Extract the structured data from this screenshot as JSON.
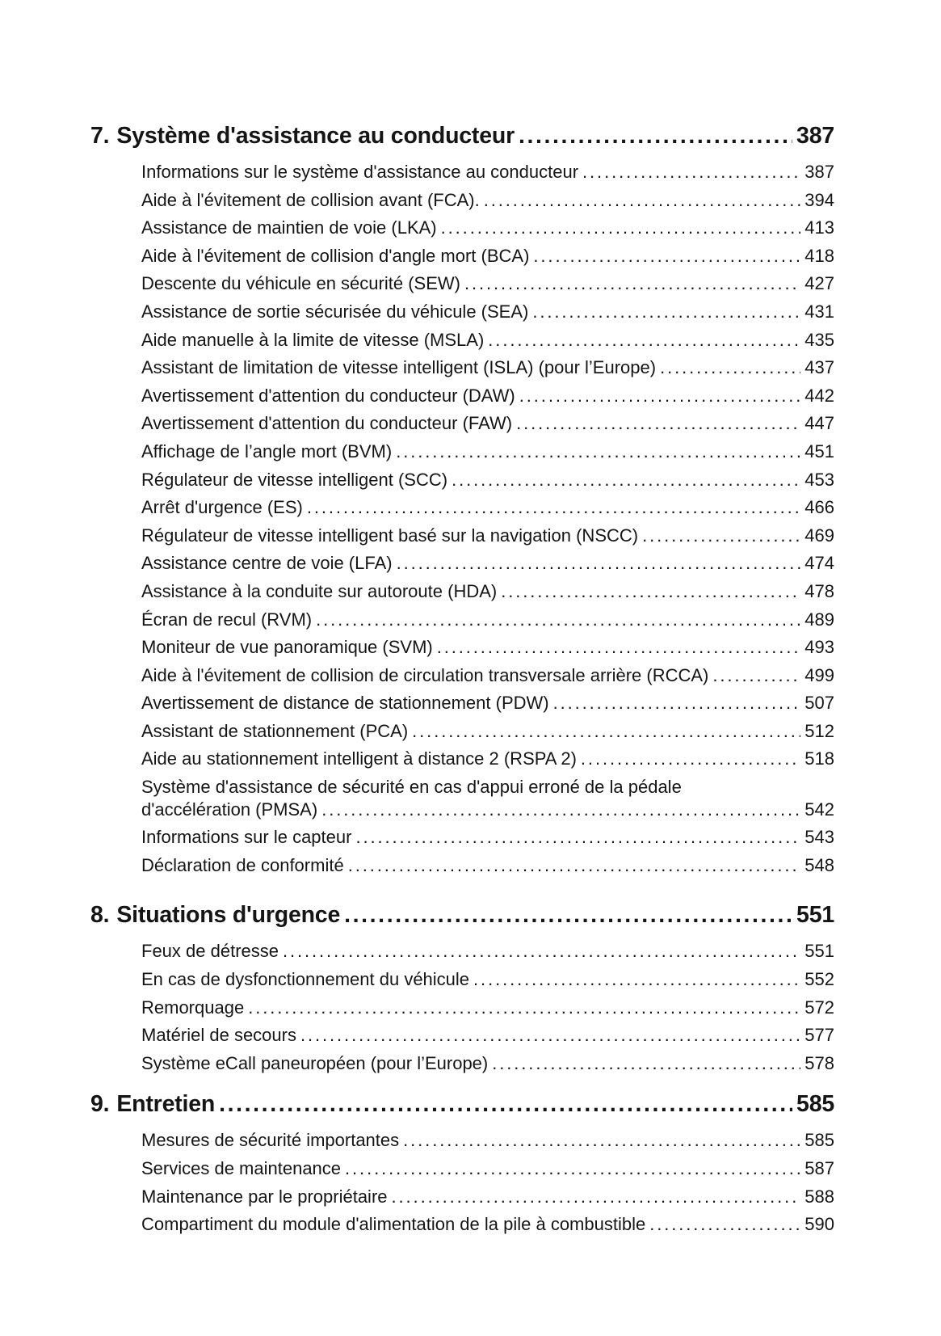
{
  "page": {
    "background_color": "#ffffff",
    "text_color": "#151515"
  },
  "toc": {
    "sections": [
      {
        "number": "7.",
        "title": "Système d'assistance au conducteur",
        "page": "387",
        "entries": [
          {
            "label": "Informations sur le système d'assistance au conducteur",
            "page": "387"
          },
          {
            "label": "Aide à l'évitement de collision avant (FCA).",
            "page": "394"
          },
          {
            "label": "Assistance de maintien de voie (LKA)",
            "page": "413"
          },
          {
            "label": "Aide à l'évitement de collision d'angle mort (BCA)",
            "page": "418"
          },
          {
            "label": "Descente du véhicule en sécurité (SEW)",
            "page": "427"
          },
          {
            "label": "Assistance de sortie sécurisée du véhicule (SEA)",
            "page": "431"
          },
          {
            "label": "Aide manuelle à la limite de vitesse (MSLA)",
            "page": "435"
          },
          {
            "label": "Assistant de limitation de vitesse intelligent (ISLA) (pour l’Europe)",
            "page": "437"
          },
          {
            "label": "Avertissement d'attention du conducteur (DAW)",
            "page": "442"
          },
          {
            "label": "Avertissement d'attention du conducteur (FAW)",
            "page": "447"
          },
          {
            "label": "Affichage de l’angle mort (BVM)",
            "page": "451"
          },
          {
            "label": "Régulateur de vitesse intelligent (SCC)",
            "page": "453"
          },
          {
            "label": "Arrêt d'urgence (ES)",
            "page": "466"
          },
          {
            "label": "Régulateur de vitesse intelligent basé sur la navigation (NSCC)",
            "page": "469"
          },
          {
            "label": "Assistance centre de voie (LFA)",
            "page": "474"
          },
          {
            "label": "Assistance à la conduite sur autoroute (HDA)",
            "page": "478"
          },
          {
            "label": "Écran de recul (RVM)",
            "page": "489"
          },
          {
            "label": "Moniteur de vue panoramique (SVM)",
            "page": "493"
          },
          {
            "label": "Aide à l'évitement de collision de circulation transversale arrière (RCCA)",
            "page": "499"
          },
          {
            "label": "Avertissement de distance de stationnement (PDW)",
            "page": "507"
          },
          {
            "label": "Assistant de stationnement (PCA)",
            "page": "512"
          },
          {
            "label": "Aide au stationnement intelligent à distance 2 (RSPA 2)",
            "page": "518"
          },
          {
            "label": "Système d'assistance de sécurité en cas d'appui erroné de la pédale",
            "label2": "d'accélération (PMSA)",
            "page": "542"
          },
          {
            "label": "Informations sur le capteur",
            "page": "543"
          },
          {
            "label": "Déclaration de conformité",
            "page": "548"
          }
        ]
      },
      {
        "number": "8.",
        "title": "Situations d'urgence",
        "page": "551",
        "entries": [
          {
            "label": "Feux de détresse",
            "page": "551"
          },
          {
            "label": "En cas de dysfonctionnement du véhicule",
            "page": "552"
          },
          {
            "label": "Remorquage",
            "page": "572"
          },
          {
            "label": "Matériel de secours",
            "page": "577"
          },
          {
            "label": "Système eCall paneuropéen (pour l’Europe)",
            "page": "578"
          }
        ]
      },
      {
        "number": "9.",
        "title": "Entretien",
        "page": "585",
        "entries": [
          {
            "label": "Mesures de sécurité importantes",
            "page": "585"
          },
          {
            "label": "Services de maintenance",
            "page": "587"
          },
          {
            "label": "Maintenance par le propriétaire",
            "page": "588"
          },
          {
            "label": "Compartiment du module d'alimentation de la pile à combustible",
            "page": "590"
          }
        ]
      }
    ]
  }
}
